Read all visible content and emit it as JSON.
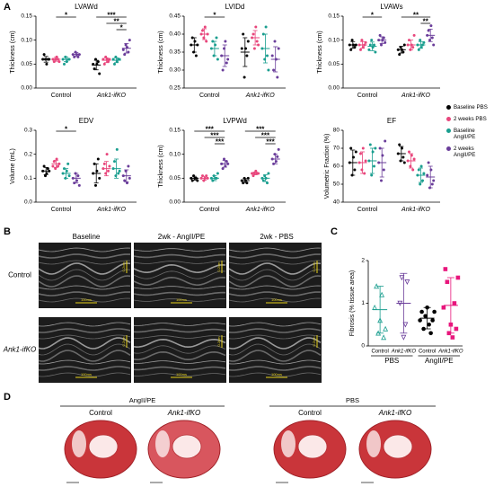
{
  "panel_labels": [
    "A",
    "B",
    "C",
    "D"
  ],
  "legend": [
    {
      "name": "Baseline PBS",
      "color": "#000000"
    },
    {
      "name": "2 weeks PBS",
      "color": "#e8467c"
    },
    {
      "name": "Baseline AngII/PE",
      "color": "#1a9e8f"
    },
    {
      "name": "2 weeks AngII/PE",
      "color": "#6a3d9a"
    }
  ],
  "chart_data": [
    {
      "type": "dotplot",
      "title": "LVAWd",
      "ylabel": "Thickness (cm)",
      "categories": [
        "Control",
        "Ank1-ifKO"
      ],
      "ylim": [
        0,
        0.15
      ],
      "yticks": [
        {
          "value": 0,
          "label": "0.00"
        },
        {
          "value": 0.05,
          "label": "0.05"
        },
        {
          "value": 0.1,
          "label": "0.10"
        },
        {
          "value": 0.15,
          "label": "0.15"
        }
      ],
      "points": [
        [
          [
            0.06,
            0.07,
            0.06,
            0.05,
            0.06,
            0.06
          ],
          [
            0.06,
            0.055,
            0.06,
            0.065,
            0.06,
            0.055
          ],
          [
            0.06,
            0.05,
            0.065,
            0.055,
            0.06,
            0.06
          ],
          [
            0.07,
            0.065,
            0.075,
            0.07,
            0.065,
            0.07
          ]
        ],
        [
          [
            0.05,
            0.04,
            0.06,
            0.05,
            0.055,
            0.03
          ],
          [
            0.06,
            0.05,
            0.065,
            0.06,
            0.055,
            0.06
          ],
          [
            0.06,
            0.05,
            0.065,
            0.055,
            0.06,
            0.06
          ],
          [
            0.08,
            0.07,
            0.09,
            0.085,
            0.075,
            0.1
          ]
        ]
      ],
      "means": [
        [
          0.06,
          0.06,
          0.06,
          0.07
        ],
        [
          0.048,
          0.058,
          0.058,
          0.083
        ]
      ],
      "sds": [
        [
          0.006,
          0.004,
          0.005,
          0.004
        ],
        [
          0.01,
          0.005,
          0.005,
          0.01
        ]
      ],
      "annotations": [
        {
          "category": 0,
          "from": 1,
          "to": 3,
          "label": "*"
        },
        {
          "category": 1,
          "from": 0,
          "to": 3,
          "label": "***"
        },
        {
          "category": 1,
          "from": 1,
          "to": 3,
          "label": "**"
        },
        {
          "category": 1,
          "from": 2,
          "to": 3,
          "label": "*"
        }
      ]
    },
    {
      "type": "dotplot",
      "title": "LVIDd",
      "ylabel": "Thickness (cm)",
      "categories": [
        "Control",
        "Ank1-ifKO"
      ],
      "ylim": [
        0.25,
        0.45
      ],
      "yticks": [
        {
          "value": 0.25,
          "label": "0.25"
        },
        {
          "value": 0.3,
          "label": "0.30"
        },
        {
          "value": 0.35,
          "label": "0.35"
        },
        {
          "value": 0.4,
          "label": "0.40"
        },
        {
          "value": 0.45,
          "label": "0.45"
        }
      ],
      "points": [
        [
          [
            0.37,
            0.39,
            0.35,
            0.38,
            0.34,
            0.37
          ],
          [
            0.4,
            0.41,
            0.39,
            0.42,
            0.38,
            0.4
          ],
          [
            0.36,
            0.38,
            0.34,
            0.37,
            0.39,
            0.33
          ],
          [
            0.34,
            0.3,
            0.36,
            0.38,
            0.32,
            0.33
          ]
        ],
        [
          [
            0.36,
            0.4,
            0.28,
            0.36,
            0.34,
            0.38
          ],
          [
            0.39,
            0.4,
            0.36,
            0.42,
            0.38,
            0.37
          ],
          [
            0.36,
            0.4,
            0.33,
            0.42,
            0.34,
            0.3
          ],
          [
            0.34,
            0.3,
            0.38,
            0.33,
            0.28,
            0.36
          ]
        ]
      ],
      "means": [
        [
          0.37,
          0.4,
          0.36,
          0.34
        ],
        [
          0.35,
          0.39,
          0.36,
          0.33
        ]
      ],
      "sds": [
        [
          0.02,
          0.015,
          0.02,
          0.03
        ],
        [
          0.04,
          0.02,
          0.04,
          0.035
        ]
      ],
      "annotations": [
        {
          "category": 0,
          "from": 1,
          "to": 3,
          "label": "*"
        }
      ]
    },
    {
      "type": "dotplot",
      "title": "LVAWs",
      "ylabel": "Thickness (cm)",
      "categories": [
        "Control",
        "Ank1-ifKO"
      ],
      "ylim": [
        0,
        0.15
      ],
      "yticks": [
        {
          "value": 0,
          "label": "0.00"
        },
        {
          "value": 0.05,
          "label": "0.05"
        },
        {
          "value": 0.1,
          "label": "0.10"
        },
        {
          "value": 0.15,
          "label": "0.15"
        }
      ],
      "points": [
        [
          [
            0.09,
            0.08,
            0.1,
            0.09,
            0.085,
            0.09
          ],
          [
            0.09,
            0.08,
            0.1,
            0.085,
            0.09,
            0.095
          ],
          [
            0.08,
            0.09,
            0.1,
            0.085,
            0.09,
            0.075
          ],
          [
            0.1,
            0.11,
            0.09,
            0.1,
            0.105,
            0.095
          ]
        ],
        [
          [
            0.08,
            0.07,
            0.085,
            0.08,
            0.075,
            0.09
          ],
          [
            0.09,
            0.1,
            0.08,
            0.09,
            0.085,
            0.11
          ],
          [
            0.09,
            0.08,
            0.1,
            0.085,
            0.09,
            0.095
          ],
          [
            0.11,
            0.12,
            0.1,
            0.13,
            0.105,
            0.09
          ]
        ]
      ],
      "means": [
        [
          0.09,
          0.09,
          0.087,
          0.1
        ],
        [
          0.08,
          0.09,
          0.09,
          0.11
        ]
      ],
      "sds": [
        [
          0.007,
          0.007,
          0.009,
          0.007
        ],
        [
          0.007,
          0.01,
          0.007,
          0.013
        ]
      ],
      "annotations": [
        {
          "category": 0,
          "from": 1,
          "to": 3,
          "label": "*"
        },
        {
          "category": 1,
          "from": 0,
          "to": 3,
          "label": "**"
        },
        {
          "category": 1,
          "from": 2,
          "to": 3,
          "label": "**"
        }
      ]
    },
    {
      "type": "dotplot",
      "title": "EDV",
      "ylabel": "Volume (mL)",
      "categories": [
        "Control",
        "Ank1-ifKO"
      ],
      "ylim": [
        0,
        0.3
      ],
      "yticks": [
        {
          "value": 0,
          "label": "0.0"
        },
        {
          "value": 0.1,
          "label": "0.1"
        },
        {
          "value": 0.2,
          "label": "0.2"
        },
        {
          "value": 0.3,
          "label": "0.3"
        }
      ],
      "points": [
        [
          [
            0.13,
            0.15,
            0.11,
            0.12,
            0.14,
            0.13
          ],
          [
            0.15,
            0.17,
            0.14,
            0.18,
            0.15,
            0.16
          ],
          [
            0.12,
            0.14,
            0.1,
            0.13,
            0.16,
            0.11
          ],
          [
            0.1,
            0.08,
            0.12,
            0.09,
            0.11,
            0.07
          ]
        ],
        [
          [
            0.12,
            0.16,
            0.07,
            0.13,
            0.18,
            0.1
          ],
          [
            0.14,
            0.16,
            0.12,
            0.2,
            0.13,
            0.15
          ],
          [
            0.14,
            0.17,
            0.11,
            0.22,
            0.12,
            0.13
          ],
          [
            0.11,
            0.09,
            0.13,
            0.08,
            0.15,
            0.1
          ]
        ]
      ],
      "means": [
        [
          0.13,
          0.16,
          0.12,
          0.1
        ],
        [
          0.12,
          0.14,
          0.14,
          0.11
        ]
      ],
      "sds": [
        [
          0.015,
          0.015,
          0.02,
          0.02
        ],
        [
          0.04,
          0.03,
          0.04,
          0.025
        ]
      ],
      "annotations": [
        {
          "category": 0,
          "from": 1,
          "to": 3,
          "label": "*"
        }
      ]
    },
    {
      "type": "dotplot",
      "title": "LVPWd",
      "ylabel": "Thickness (cm)",
      "categories": [
        "Control",
        "Ank1-ifKO"
      ],
      "ylim": [
        0,
        0.15
      ],
      "yticks": [
        {
          "value": 0,
          "label": "0.00"
        },
        {
          "value": 0.05,
          "label": "0.05"
        },
        {
          "value": 0.1,
          "label": "0.10"
        },
        {
          "value": 0.15,
          "label": "0.15"
        }
      ],
      "points": [
        [
          [
            0.05,
            0.045,
            0.055,
            0.05,
            0.05,
            0.045
          ],
          [
            0.05,
            0.055,
            0.045,
            0.05,
            0.055,
            0.05
          ],
          [
            0.05,
            0.045,
            0.055,
            0.05,
            0.05,
            0.06
          ],
          [
            0.08,
            0.07,
            0.09,
            0.075,
            0.085,
            0.08
          ]
        ],
        [
          [
            0.045,
            0.04,
            0.05,
            0.045,
            0.04,
            0.05
          ],
          [
            0.06,
            0.055,
            0.06,
            0.065,
            0.06,
            0.06
          ],
          [
            0.05,
            0.045,
            0.055,
            0.05,
            0.04,
            0.06
          ],
          [
            0.09,
            0.08,
            0.1,
            0.085,
            0.095,
            0.11
          ]
        ]
      ],
      "means": [
        [
          0.05,
          0.05,
          0.05,
          0.08
        ],
        [
          0.045,
          0.06,
          0.05,
          0.09
        ]
      ],
      "sds": [
        [
          0.004,
          0.004,
          0.005,
          0.007
        ],
        [
          0.004,
          0.003,
          0.007,
          0.01
        ]
      ],
      "annotations": [
        {
          "category": 0,
          "from": 0,
          "to": 3,
          "label": "***"
        },
        {
          "category": 0,
          "from": 1,
          "to": 3,
          "label": "***"
        },
        {
          "category": 0,
          "from": 2,
          "to": 3,
          "label": "***"
        },
        {
          "category": 1,
          "from": 0,
          "to": 3,
          "label": "***"
        },
        {
          "category": 1,
          "from": 1,
          "to": 3,
          "label": "***"
        },
        {
          "category": 1,
          "from": 2,
          "to": 3,
          "label": "***"
        }
      ]
    },
    {
      "type": "dotplot",
      "title": "EF",
      "ylabel": "Volumetric Fraction (%)",
      "categories": [
        "Control",
        "Ank1-ifKO"
      ],
      "ylim": [
        40,
        80
      ],
      "yticks": [
        40,
        50,
        60,
        70,
        80
      ],
      "points": [
        [
          [
            62,
            70,
            55,
            65,
            58,
            68
          ],
          [
            62,
            67,
            58,
            70,
            56,
            63
          ],
          [
            63,
            72,
            55,
            68,
            60,
            70
          ],
          [
            62,
            70,
            52,
            66,
            58,
            74
          ]
        ],
        [
          [
            67,
            72,
            63,
            70,
            65,
            62
          ],
          [
            63,
            68,
            60,
            66,
            58,
            64
          ],
          [
            55,
            58,
            50,
            60,
            52,
            56
          ],
          [
            55,
            62,
            48,
            58,
            50,
            52
          ]
        ]
      ],
      "means": [
        [
          62,
          62,
          63,
          62
        ],
        [
          67,
          63,
          55,
          54
        ]
      ],
      "sds": [
        [
          7,
          6,
          7,
          8
        ],
        [
          4,
          4,
          4,
          6
        ]
      ],
      "annotations": []
    },
    {
      "type": "groupdot",
      "ylabel": "Fibrosis (% tissue area)",
      "groups": [
        "PBS",
        "AngII/PE"
      ],
      "categories": [
        "Control",
        "Ank1-ifKO"
      ],
      "ylim": [
        0,
        2
      ],
      "yticks": [
        0,
        1,
        2
      ],
      "colors": [
        "#1a9e8f",
        "#6a3d9a",
        "#000000",
        "#e8167c"
      ],
      "markers": [
        "triangle",
        "triangle-down",
        "circle",
        "square"
      ],
      "points": [
        [
          0.9,
          1.4,
          0.3,
          0.6,
          1.2,
          0.2,
          0.4
        ],
        [
          1.0,
          1.6,
          0.2,
          0.5,
          1.5
        ],
        [
          0.6,
          0.8,
          0.4,
          0.7,
          0.9,
          0.5,
          0.3,
          0.6,
          0.8
        ],
        [
          0.9,
          1.8,
          1.5,
          0.3,
          0.5,
          0.2,
          1.0,
          0.4,
          1.6
        ]
      ],
      "means": [
        0.85,
        1.0,
        0.65,
        0.95
      ],
      "sds": [
        0.55,
        0.7,
        0.25,
        0.65
      ]
    }
  ],
  "echo": {
    "columns": [
      "Baseline",
      "2wk - AngII/PE",
      "2wk - PBS"
    ],
    "rows": [
      "Control",
      "Ank1-ifKO"
    ],
    "scale_time": "100ms",
    "scale_depth": "0.2cm"
  },
  "histology": {
    "groups": [
      "AngII/PE",
      "PBS"
    ],
    "columns": [
      "Control",
      "Ank1-ifKO",
      "Control",
      "Ank1-ifKO"
    ]
  }
}
